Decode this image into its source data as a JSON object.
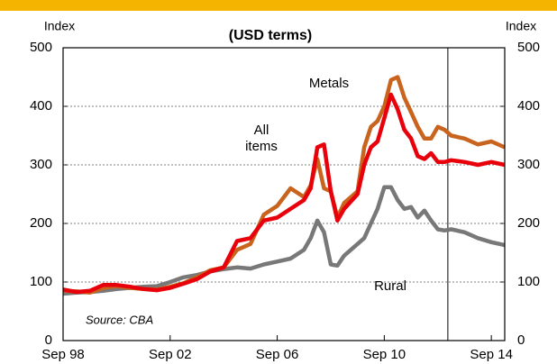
{
  "chart_data": {
    "type": "line",
    "subtitle": "(USD terms)",
    "y_label": "Index",
    "y2_label": "Index",
    "source": "Source: CBA",
    "x": [
      1998.75,
      1999.25,
      1999.75,
      2000.25,
      2000.75,
      2001.25,
      2001.75,
      2002.25,
      2002.75,
      2003.25,
      2003.75,
      2004.25,
      2004.75,
      2005.25,
      2005.75,
      2006.25,
      2006.75,
      2007.25,
      2007.75,
      2008.0,
      2008.25,
      2008.5,
      2008.75,
      2009.0,
      2009.25,
      2009.75,
      2010.0,
      2010.25,
      2010.5,
      2010.75,
      2011.0,
      2011.25,
      2011.5,
      2011.75,
      2012.0,
      2012.25,
      2012.5,
      2012.75,
      2013.0,
      2013.25,
      2013.75,
      2014.25,
      2014.75,
      2015.25
    ],
    "series": [
      {
        "name": "Rural",
        "color": "#787878",
        "values": [
          80,
          82,
          83,
          85,
          88,
          90,
          92,
          93,
          100,
          108,
          112,
          118,
          122,
          125,
          123,
          130,
          135,
          140,
          155,
          175,
          205,
          185,
          130,
          128,
          145,
          165,
          175,
          200,
          225,
          262,
          262,
          240,
          225,
          228,
          210,
          222,
          205,
          190,
          188,
          190,
          185,
          175,
          168,
          163
        ]
      },
      {
        "name": "Metals",
        "color": "#c8641e",
        "values": [
          85,
          84,
          82,
          90,
          93,
          90,
          88,
          87,
          92,
          98,
          108,
          120,
          125,
          155,
          165,
          215,
          230,
          260,
          245,
          265,
          310,
          260,
          255,
          210,
          235,
          255,
          330,
          365,
          375,
          400,
          445,
          450,
          415,
          390,
          365,
          345,
          345,
          365,
          360,
          350,
          345,
          335,
          340,
          330
        ]
      },
      {
        "name": "All items",
        "color": "#e8000b",
        "values": [
          87,
          83,
          85,
          95,
          95,
          92,
          88,
          86,
          90,
          97,
          105,
          118,
          125,
          170,
          175,
          205,
          210,
          225,
          240,
          260,
          330,
          335,
          255,
          205,
          225,
          250,
          300,
          330,
          340,
          380,
          420,
          395,
          360,
          345,
          315,
          310,
          320,
          305,
          305,
          308,
          305,
          300,
          305,
          300
        ]
      }
    ],
    "xlim": [
      1998.75,
      2015.25
    ],
    "xticks": [
      {
        "value": 1998.75,
        "label": "Sep 98"
      },
      {
        "value": 2002.75,
        "label": "Sep 02"
      },
      {
        "value": 2006.75,
        "label": "Sep 06"
      },
      {
        "value": 2010.75,
        "label": "Sep 10"
      },
      {
        "value": 2014.75,
        "label": "Sep 14"
      }
    ],
    "ylim": [
      0,
      500
    ],
    "yticks": [
      0,
      100,
      200,
      300,
      400,
      500
    ],
    "reference_line_x": 2013.125,
    "grid": true
  }
}
